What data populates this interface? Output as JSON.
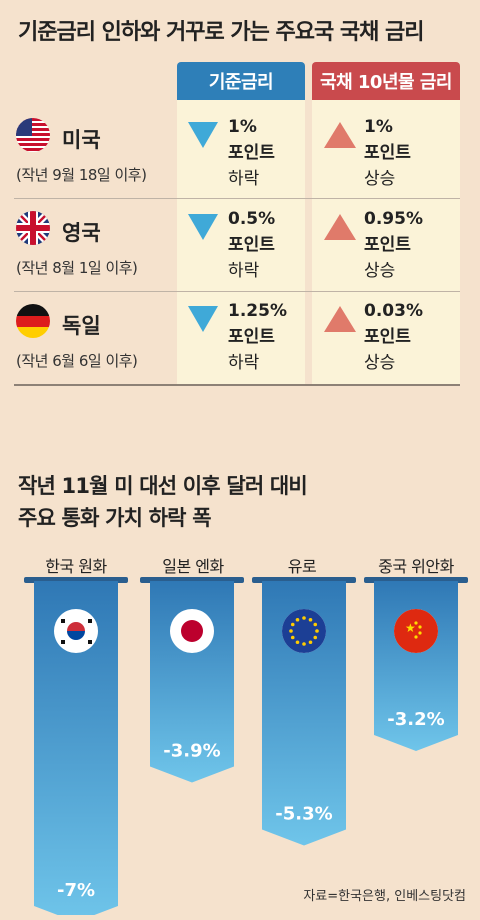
{
  "title": "기준금리 인하와 거꾸로 가는 주요국 국채 금리",
  "headers": {
    "rate": "기준금리",
    "bond": "국채 10년물 금리"
  },
  "countries": [
    {
      "name": "미국",
      "since": "(작년 9월 18일 이후)",
      "flag": "us-flag-icon",
      "rate": "1%",
      "rate_unit": "포인트",
      "rate_dir": "하락",
      "bond": "1%",
      "bond_unit": "포인트",
      "bond_dir": "상승"
    },
    {
      "name": "영국",
      "since": "(작년 8월 1일 이후)",
      "flag": "uk-flag-icon",
      "rate": "0.5%",
      "rate_unit": "포인트",
      "rate_dir": "하락",
      "bond": "0.95%",
      "bond_unit": "포인트",
      "bond_dir": "상승"
    },
    {
      "name": "독일",
      "since": "(작년 6월 6일 이후)",
      "flag": "germany-flag-icon",
      "rate": "1.25%",
      "rate_unit": "포인트",
      "rate_dir": "하락",
      "bond": "0.03%",
      "bond_unit": "포인트",
      "bond_dir": "상승"
    }
  ],
  "section2": {
    "line1": "작년 11월 미 대선 이후 달러 대비",
    "line2": "주요 통화 가치 하락 폭"
  },
  "source": "자료=한국은행, 인베스팅닷컴",
  "colors": {
    "blue": "#2e7fb8",
    "red": "#c94a4d",
    "down": "#3fa9d8",
    "up": "#e07a6a",
    "background": "#f5e2cd"
  },
  "chart_data": {
    "type": "bar",
    "categories": [
      "한국 원화",
      "일본 엔화",
      "유로",
      "중국 위안화"
    ],
    "values": [
      -7,
      -3.9,
      -5.3,
      -3.2
    ],
    "value_labels": [
      "-7%",
      "-3.9%",
      "-5.3%",
      "-3.2%"
    ],
    "flags": [
      "korea-flag-icon",
      "japan-flag-icon",
      "eu-flag-icon",
      "china-flag-icon"
    ],
    "title": "",
    "xlabel": "",
    "ylabel": ""
  }
}
